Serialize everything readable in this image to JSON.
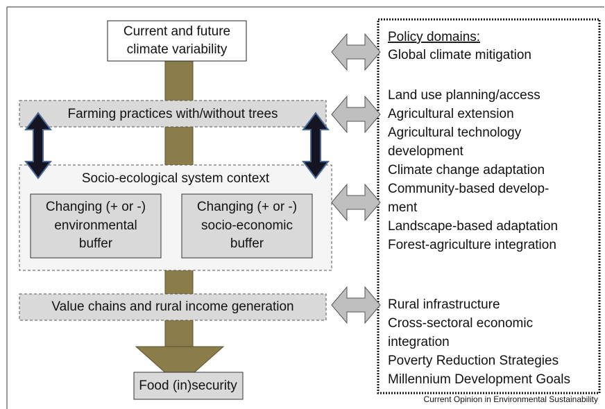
{
  "diagram": {
    "top_box": [
      "Current and future",
      "climate variability"
    ],
    "farming": "Farming practices with/without trees",
    "socio": {
      "title": "Socio-ecological system context",
      "left": [
        "Changing (+ or -)",
        "environmental",
        "buffer"
      ],
      "right": [
        "Changing (+ or -)",
        "socio-economic",
        "buffer"
      ]
    },
    "value_chains": "Value chains and rural income generation",
    "food": "Food (in)security",
    "policy": {
      "heading": "Policy domains:",
      "groups": [
        [
          "Global climate mitigation"
        ],
        [
          "Land use planning/access",
          "Agricultural extension",
          "Agricultural technology",
          "development",
          "Climate change adaptation",
          "Community-based develop-",
          "ment",
          "Landscape-based adaptation",
          "Forest-agriculture integration"
        ],
        [
          "Rural infrastructure",
          "Cross-sectoral economic",
          "integration",
          "Poverty Reduction Strategies",
          "Millennium Development Goals"
        ]
      ]
    },
    "caption": "Current Opinion in Environmental Sustainability"
  }
}
